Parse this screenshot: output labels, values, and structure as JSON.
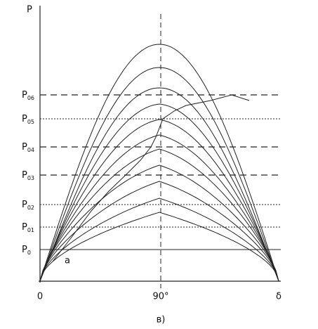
{
  "axis_label": "P",
  "levels": [
    {
      "main": "P",
      "sub": "06"
    },
    {
      "main": "P",
      "sub": "05"
    },
    {
      "main": "P",
      "sub": "04"
    },
    {
      "main": "P",
      "sub": "03"
    },
    {
      "main": "P",
      "sub": "02"
    },
    {
      "main": "P",
      "sub": "01"
    },
    {
      "main": "P",
      "sub": "0"
    }
  ],
  "x_labels": [
    "0",
    "90°",
    "δ"
  ],
  "curve_label": "a",
  "caption": "в)"
}
